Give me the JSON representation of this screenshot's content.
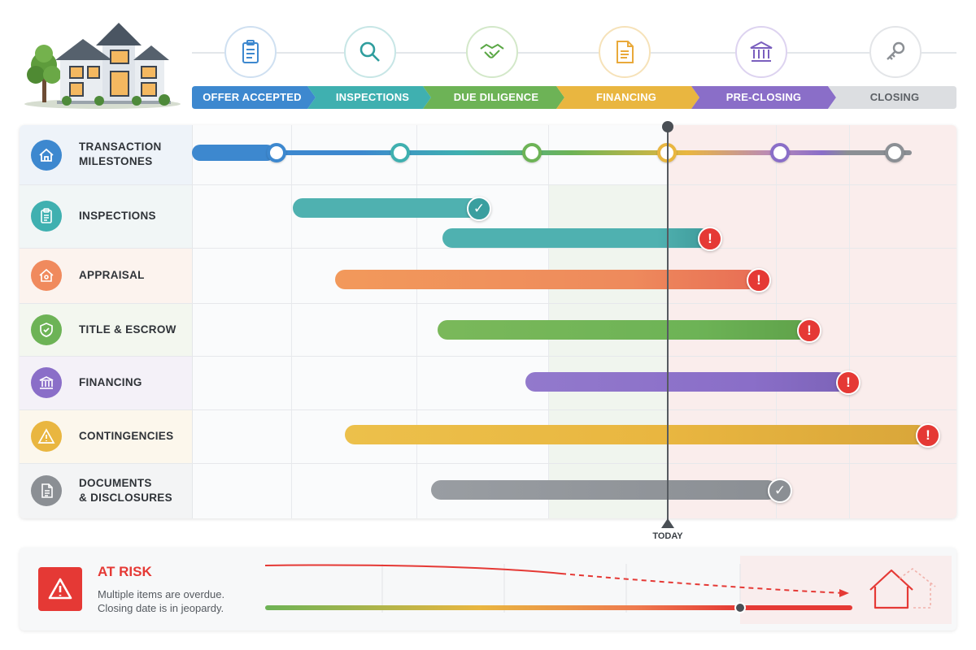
{
  "phases": [
    {
      "label": "OFFER ACCEPTED",
      "color": "#3d88cf",
      "icon": "clipboard-icon"
    },
    {
      "label": "INSPECTIONS",
      "color": "#3fb0b0",
      "icon": "magnifier-icon"
    },
    {
      "label": "DUE DILIGENCE",
      "color": "#6db356",
      "icon": "handshake-icon"
    },
    {
      "label": "FINANCING",
      "color": "#e9b640",
      "icon": "document-icon"
    },
    {
      "label": "PRE-CLOSING",
      "color": "#8a6ec8",
      "icon": "bank-icon"
    },
    {
      "label": "CLOSING",
      "color": "#dcdee1",
      "icon": "key-icon"
    }
  ],
  "rows": [
    {
      "label": "TRANSACTION\nMILESTONES",
      "icon": "home-icon",
      "color": "#3d88cf"
    },
    {
      "label": "INSPECTIONS",
      "icon": "clipboard-icon",
      "color": "#3fb0b0",
      "status": "complete"
    },
    {
      "label": "APPRAISAL",
      "icon": "house-icon",
      "color": "#f08a5d",
      "status": "overdue"
    },
    {
      "label": "TITLE & ESCROW",
      "icon": "shield-icon",
      "color": "#6db356",
      "status": "overdue"
    },
    {
      "label": "FINANCING",
      "icon": "bank-icon",
      "color": "#8a6ec8",
      "status": "overdue"
    },
    {
      "label": "CONTINGENCIES",
      "icon": "warning-icon",
      "color": "#e9b640",
      "status": "overdue"
    },
    {
      "label": "DOCUMENTS\n& DISCLOSURES",
      "icon": "document-icon",
      "color": "#8b8f94",
      "status": "complete"
    }
  ],
  "today_label": "TODAY",
  "risk": {
    "title": "AT RISK",
    "line1": "Multiple items are overdue.",
    "line2": "Closing date is in jeopardy.",
    "color": "#e53935"
  }
}
